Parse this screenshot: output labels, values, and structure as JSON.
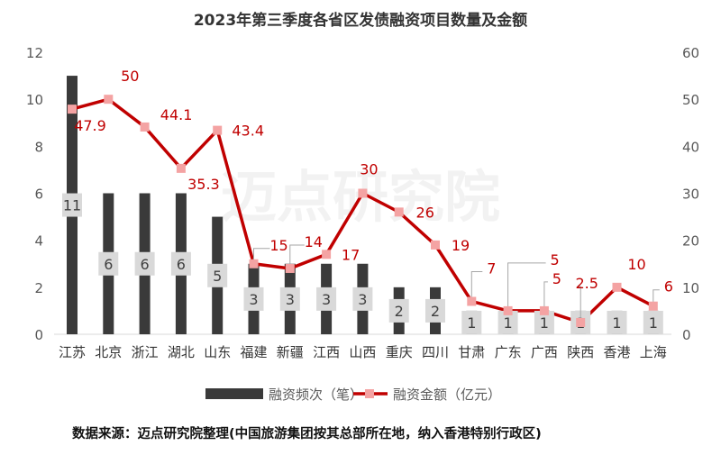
{
  "chart_data": {
    "type": "bar+line",
    "title": "2023年第三季度各省区发债融资项目数量及金额",
    "categories": [
      "江苏",
      "北京",
      "浙江",
      "湖北",
      "山东",
      "福建",
      "新疆",
      "江西",
      "山西",
      "重庆",
      "四川",
      "甘肃",
      "广东",
      "广西",
      "陕西",
      "香港",
      "上海"
    ],
    "series": [
      {
        "name": "融资频次（笔）",
        "type": "bar",
        "axis": "left",
        "color": "#3a3a3a",
        "values": [
          11,
          6,
          6,
          6,
          5,
          3,
          3,
          3,
          3,
          2,
          2,
          1,
          1,
          1,
          1,
          1,
          1
        ]
      },
      {
        "name": "融资金额（亿元）",
        "type": "line",
        "axis": "right",
        "color": "#c00000",
        "marker_color": "#f4a3a3",
        "values": [
          47.9,
          50,
          44.1,
          35.3,
          43.4,
          15,
          14,
          17,
          30,
          26,
          19,
          7,
          5,
          5,
          2.5,
          10,
          6
        ]
      }
    ],
    "ylim_left": [
      0,
      12
    ],
    "yticks_left": [
      "0",
      "2",
      "4",
      "6",
      "8",
      "10",
      "12"
    ],
    "ylim_right": [
      0,
      60
    ],
    "yticks_right": [
      "0",
      "10",
      "20",
      "30",
      "40",
      "50",
      "60"
    ],
    "grid": false,
    "legend": "bottom"
  },
  "footnote": "数据来源：迈点研究院整理(中国旅游集团按其总部所在地，纳入香港特别行政区)"
}
